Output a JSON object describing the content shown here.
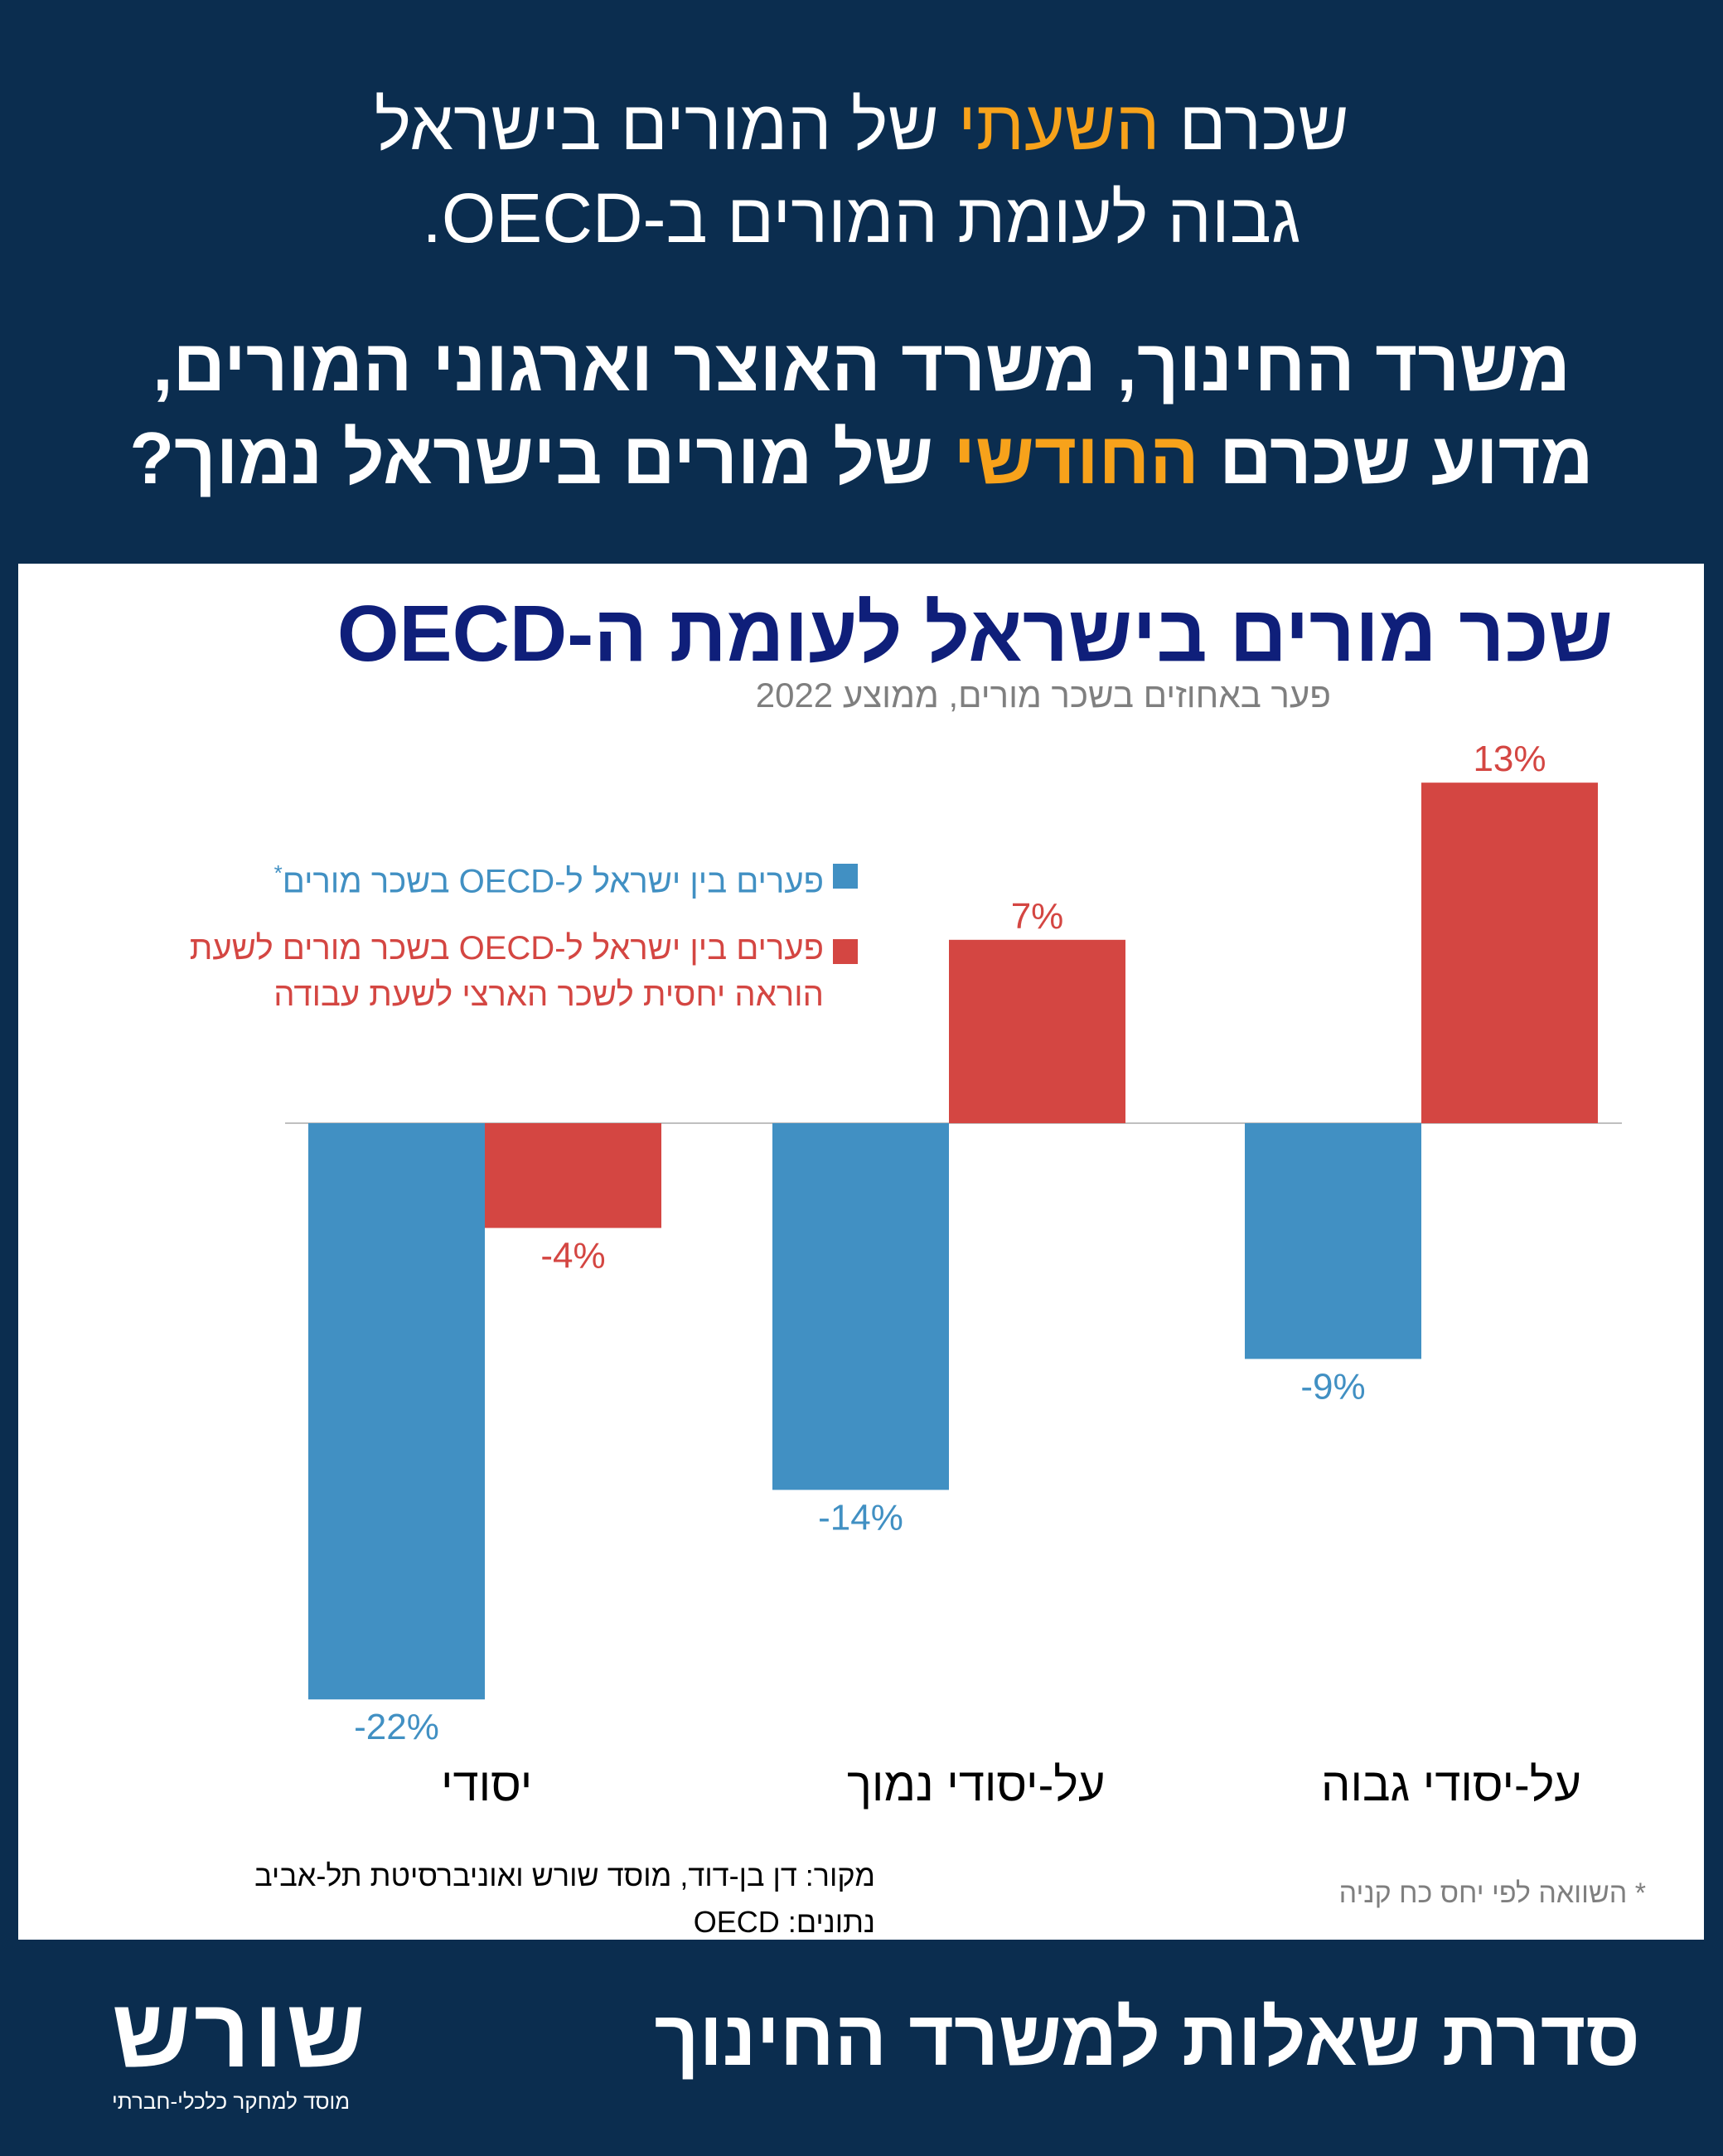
{
  "header": {
    "line1_pre": "שכרם ",
    "line1_hl": "השעתי",
    "line1_post": " של המורים בישראל",
    "line2": "גבוה לעומת המורים ב-OECD.",
    "line3": "משרד החינוך, משרד האוצר וארגוני המורים,",
    "line4_pre": "מדוע שכרם ",
    "line4_hl": "החודשי",
    "line4_post": " של מורים בישראל נמוך?"
  },
  "chart_data": {
    "type": "bar",
    "title": "שכר מורים בישראל לעומת ה-OECD",
    "subtitle": "פער באחוזים בשכר מורים, ממוצע 2022",
    "categories": [
      "יסודי",
      "על-יסודי נמוך",
      "על-יסודי גבוה"
    ],
    "series": [
      {
        "name": "פערים בין ישראל ל-OECD בשכר מורים*",
        "color": "#4190c3",
        "values": [
          -22,
          -14,
          -9
        ],
        "labels": [
          "-22%",
          "-14%",
          "-9%"
        ]
      },
      {
        "name": "פערים בין ישראל ל-OECD בשכר מורים לשעת הוראה יחסית לשכר הארצי לשעת עבודה",
        "color": "#d44642",
        "values": [
          -4,
          7,
          13
        ],
        "labels": [
          "-4%",
          "7%",
          "13%"
        ]
      }
    ],
    "legend_lines": {
      "s1": "פערים בין ישראל ל-OECD בשכר מורים",
      "s1_mark": "*",
      "s2_line1": "פערים בין ישראל ל-OECD בשכר מורים לשעת",
      "s2_line2": "הוראה יחסית לשכר הארצי לשעת עבודה"
    },
    "ylim": [
      -22,
      13
    ],
    "legend_position": "top-left"
  },
  "source": {
    "line1": "מקור: דן בן-דוד, מוסד שורש ואוניברסיטת תל-אביב",
    "line2": "נתונים: OECD"
  },
  "footnote": "* השוואה לפי יחס כח קניה",
  "footer": {
    "title": "סדרת שאלות למשרד החינוך",
    "logo": "שורש",
    "logo_sub": "מוסד למחקר כלכלי-חברתי"
  },
  "colors": {
    "background": "#0b2d4f",
    "highlight": "#f7a21b",
    "title": "#0f1f7a",
    "blue": "#4190c3",
    "red": "#d44642"
  }
}
